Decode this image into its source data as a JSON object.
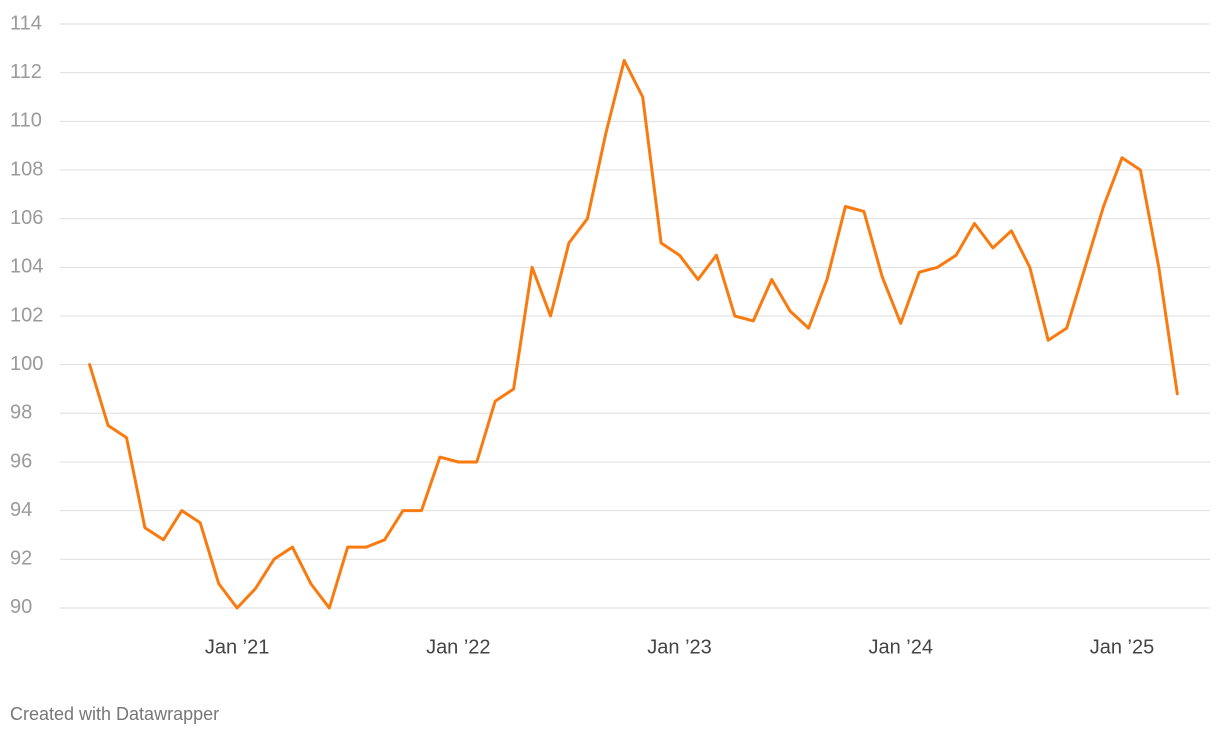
{
  "chart_data": {
    "type": "line",
    "credit": "Created with Datawrapper",
    "x": [
      "2020-05",
      "2020-06",
      "2020-07",
      "2020-08",
      "2020-09",
      "2020-10",
      "2020-11",
      "2020-12",
      "2021-01",
      "2021-02",
      "2021-03",
      "2021-04",
      "2021-05",
      "2021-06",
      "2021-07",
      "2021-08",
      "2021-09",
      "2021-10",
      "2021-11",
      "2021-12",
      "2022-01",
      "2022-02",
      "2022-03",
      "2022-04",
      "2022-05",
      "2022-06",
      "2022-07",
      "2022-08",
      "2022-09",
      "2022-10",
      "2022-11",
      "2022-12",
      "2023-01",
      "2023-02",
      "2023-03",
      "2023-04",
      "2023-05",
      "2023-06",
      "2023-07",
      "2023-08",
      "2023-09",
      "2023-10",
      "2023-11",
      "2023-12",
      "2024-01",
      "2024-02",
      "2024-03",
      "2024-04",
      "2024-05",
      "2024-06",
      "2024-07",
      "2024-08",
      "2024-09",
      "2024-10",
      "2024-11",
      "2024-12",
      "2025-01",
      "2025-02",
      "2025-03",
      "2025-04"
    ],
    "values": [
      100.0,
      97.5,
      97.0,
      93.3,
      92.8,
      94.0,
      93.5,
      91.0,
      90.0,
      90.8,
      92.0,
      92.5,
      91.0,
      90.0,
      92.5,
      92.5,
      92.8,
      94.0,
      94.0,
      96.2,
      96.0,
      96.0,
      98.5,
      99.0,
      104.0,
      102.0,
      105.0,
      106.0,
      109.5,
      112.5,
      111.0,
      105.0,
      104.5,
      103.5,
      104.5,
      102.0,
      101.8,
      103.5,
      102.2,
      101.5,
      103.5,
      106.5,
      106.3,
      103.6,
      101.7,
      103.8,
      104.0,
      104.5,
      105.8,
      104.8,
      105.5,
      104.0,
      101.0,
      101.5,
      104.0,
      106.5,
      108.5,
      108.0,
      104.0,
      98.8
    ],
    "color": "#f97b10",
    "xlim": [
      "2020-04",
      "2025-05"
    ],
    "xticks": [
      {
        "value": "2021-01",
        "label": "Jan ’21"
      },
      {
        "value": "2022-01",
        "label": "Jan ’22"
      },
      {
        "value": "2023-01",
        "label": "Jan ’23"
      },
      {
        "value": "2024-01",
        "label": "Jan ’24"
      },
      {
        "value": "2025-01",
        "label": "Jan ’25"
      }
    ],
    "ylim": [
      89.3,
      114
    ],
    "yticks": [
      90,
      92,
      94,
      96,
      98,
      100,
      102,
      104,
      106,
      108,
      110,
      112,
      114
    ],
    "grid": true
  }
}
